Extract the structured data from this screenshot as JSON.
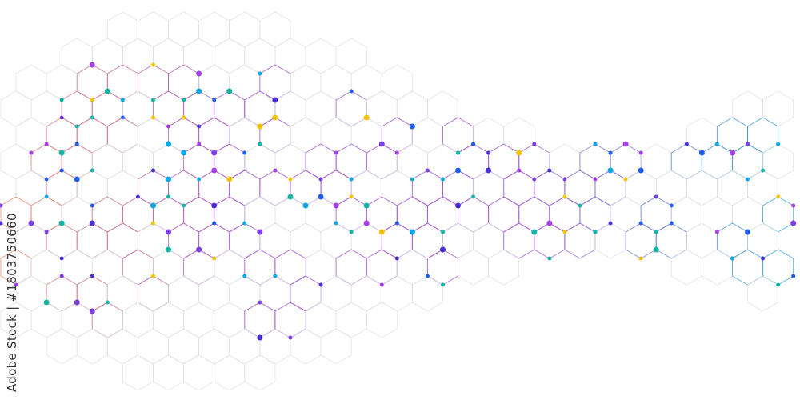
{
  "credit": "Adobe Stock | #1803750660",
  "palette": {
    "left_lines": "#ef8a5a",
    "mid_lines": "#a24fd0",
    "right_lines": "#3a9bd6",
    "faint_lines": "#d9dde6",
    "dots": [
      "#1f5cf0",
      "#7b3fe4",
      "#f5c400",
      "#12b5a6",
      "#a63fe8",
      "#0aa8e6",
      "#4a2fd6"
    ]
  }
}
